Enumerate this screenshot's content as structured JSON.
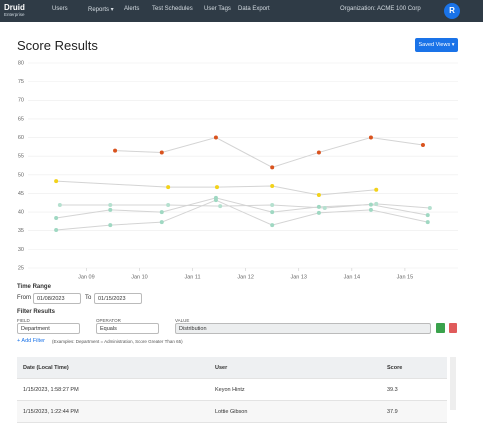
{
  "nav": {
    "logo": "Druid",
    "logo_sub": "Enterprise",
    "items": [
      "Users",
      "Reports ▾",
      "Alerts",
      "Test Schedules",
      "User Tags",
      "Data Export"
    ],
    "organization": "Organization: ACME 100 Corp",
    "avatar": "R"
  },
  "header": {
    "title": "Score Results",
    "button": "Saved Views ▾"
  },
  "chart_data": {
    "type": "scatter-line",
    "xlim": [
      7.9,
      16.0
    ],
    "xticks": [
      {
        "value": 9,
        "label": "Jan 09"
      },
      {
        "value": 10,
        "label": "Jan 10"
      },
      {
        "value": 11,
        "label": "Jan 11"
      },
      {
        "value": 12,
        "label": "Jan 12"
      },
      {
        "value": 13,
        "label": "Jan 13"
      },
      {
        "value": 14,
        "label": "Jan 14"
      },
      {
        "value": 15,
        "label": "Jan 15"
      }
    ],
    "ylim": [
      25,
      80
    ],
    "yticks": [
      25,
      30,
      35,
      40,
      45,
      50,
      55,
      60,
      65,
      70,
      75,
      80
    ],
    "grid": true,
    "line_color": "#d4d4d4",
    "series": [
      {
        "color": "#d9531e",
        "x": [
          9.54,
          10.42,
          11.44,
          12.5,
          13.38,
          14.36,
          15.34
        ],
        "values": [
          56.5,
          56,
          60,
          52,
          56,
          60,
          58
        ]
      },
      {
        "color": "#f2d21b",
        "x": [
          8.43,
          10.54,
          11.46,
          12.5,
          13.38,
          14.46
        ],
        "values": [
          48.3,
          46.7,
          46.7,
          47,
          44.6,
          46
        ]
      },
      {
        "color": "#9fd8c2",
        "x": [
          8.43,
          9.45,
          10.42,
          11.44,
          12.5,
          13.38,
          14.36,
          15.43
        ],
        "values": [
          38.4,
          40.6,
          40,
          43.8,
          40,
          41.4,
          42,
          39.2
        ]
      },
      {
        "color": "#9fd8c2",
        "x": [
          8.43,
          9.45,
          10.42,
          11.44,
          12.5,
          13.38,
          14.36,
          15.43
        ],
        "values": [
          35.2,
          36.5,
          37.3,
          43.2,
          36.5,
          39.8,
          40.6,
          37.3
        ]
      },
      {
        "color": "#b5e0cf",
        "x": [
          8.5,
          9.45,
          10.54,
          11.52,
          12.5,
          13.49,
          14.46,
          15.47
        ],
        "values": [
          41.9,
          41.9,
          41.9,
          41.6,
          41.9,
          41.1,
          42.2,
          41.1
        ]
      }
    ]
  },
  "filters": {
    "time_range": "Time Range",
    "from_label": "From",
    "from": "01/08/2023",
    "to_label": "To",
    "to": "01/15/2023",
    "title": "Filter Results",
    "field_label": "FIELD",
    "field": "Department",
    "operator_label": "OPERATOR",
    "operator": "Equals",
    "value_label": "VALUE",
    "value": "Distribution",
    "add": "+ Add Filter",
    "examples": "(Examples: Department = Administration, Score Greater Than 65)"
  },
  "table": {
    "headers": [
      "Date (Local Time)",
      "User",
      "Score"
    ],
    "rows": [
      [
        "1/15/2023, 1:58:27 PM",
        "Keyon Hintz",
        "39.3"
      ],
      [
        "1/15/2023, 1:22:44 PM",
        "Lottie Gibson",
        "37.9"
      ]
    ]
  }
}
